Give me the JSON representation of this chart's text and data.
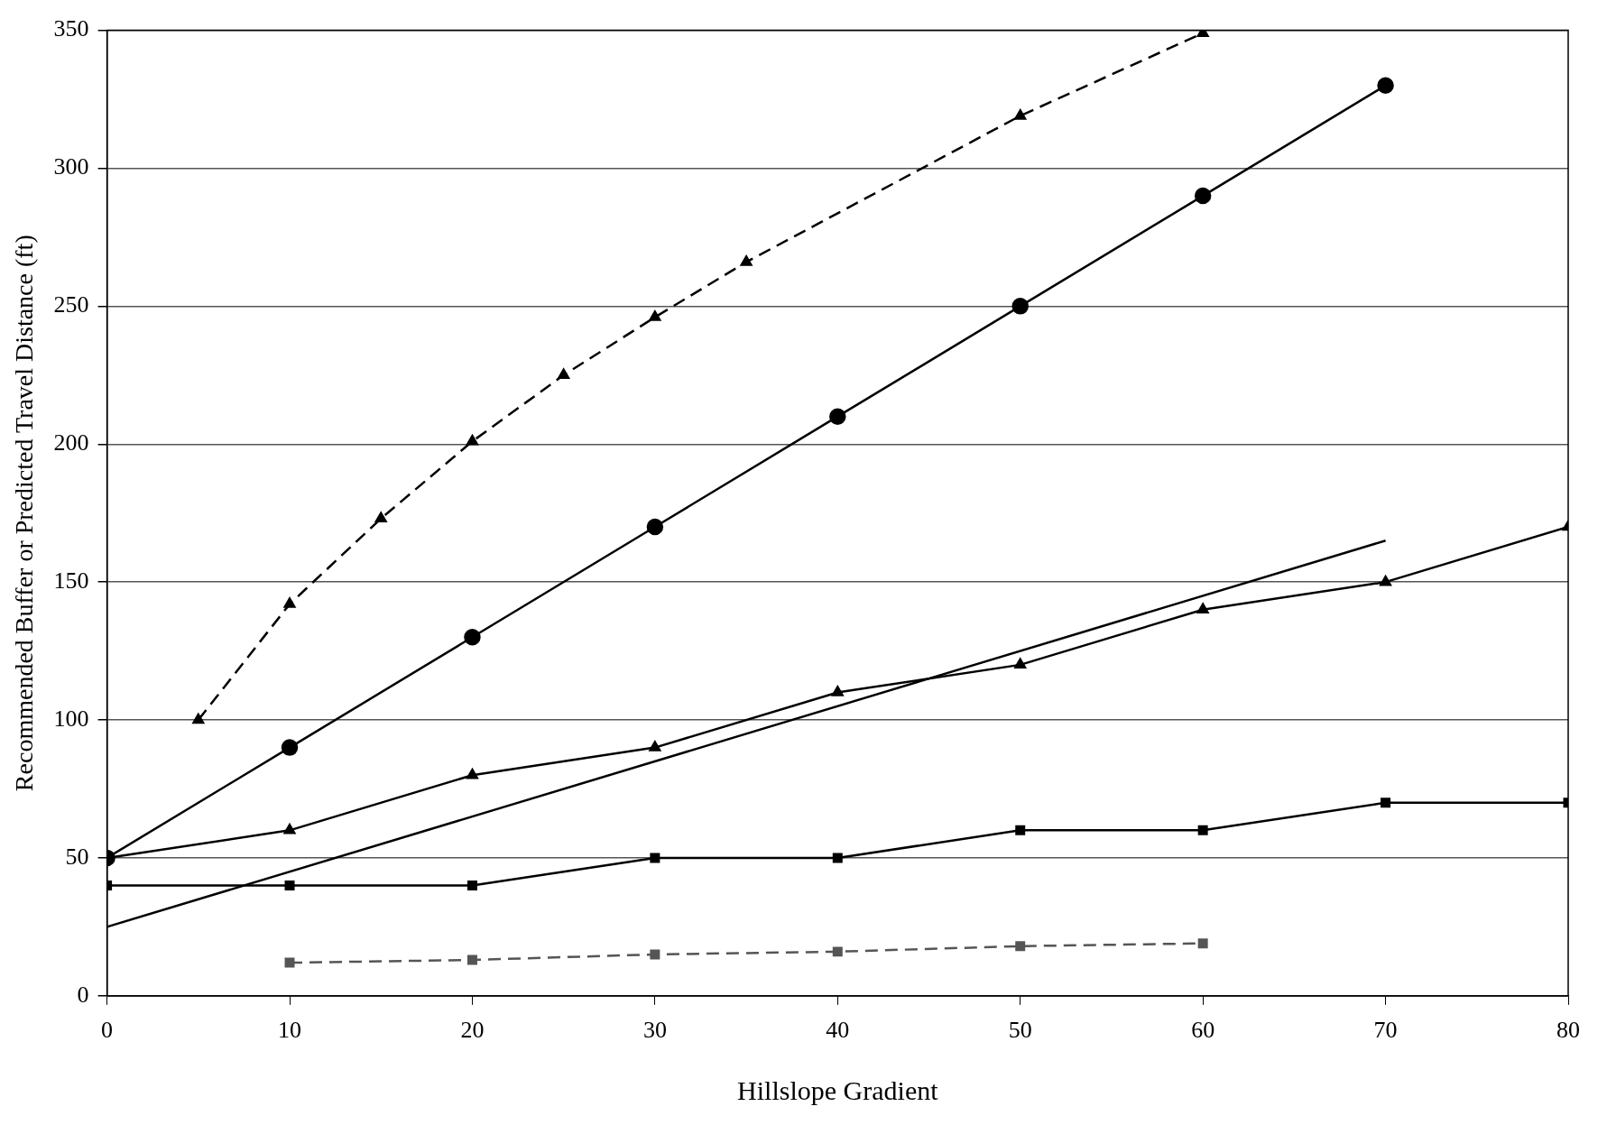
{
  "chart_data": {
    "type": "line",
    "xlabel": "Hillslope Gradient",
    "ylabel": "Recommended Buffer or Predicted Travel Distance (ft)",
    "xlim": [
      0,
      80
    ],
    "ylim": [
      0,
      350
    ],
    "xticks": [
      0,
      10,
      20,
      30,
      40,
      50,
      60,
      70,
      80
    ],
    "yticks": [
      0,
      50,
      100,
      150,
      200,
      250,
      300,
      350
    ],
    "grid": "y",
    "legend": false,
    "series": [
      {
        "color": "#000000",
        "marker": "triangle",
        "line_style": "dashed",
        "x": [
          5,
          10,
          15,
          20,
          25,
          30,
          35,
          50,
          60
        ],
        "values": [
          100,
          142,
          173,
          201,
          225,
          246,
          266,
          319,
          349
        ]
      },
      {
        "color": "#000000",
        "marker": "circle",
        "line_style": "solid",
        "x": [
          0,
          10,
          20,
          30,
          40,
          50,
          60,
          70
        ],
        "values": [
          50,
          90,
          130,
          170,
          210,
          250,
          290,
          330
        ]
      },
      {
        "color": "#000000",
        "marker": "none",
        "line_style": "solid",
        "x": [
          0,
          70
        ],
        "values": [
          25,
          165
        ]
      },
      {
        "color": "#000000",
        "marker": "triangle",
        "line_style": "solid",
        "x": [
          0,
          10,
          20,
          30,
          40,
          50,
          60,
          70,
          80
        ],
        "values": [
          50,
          60,
          80,
          90,
          110,
          120,
          140,
          150,
          170
        ]
      },
      {
        "color": "#000000",
        "marker": "square",
        "line_style": "solid",
        "x": [
          0,
          10,
          20,
          30,
          40,
          50,
          60,
          70,
          80
        ],
        "values": [
          40,
          40,
          40,
          50,
          50,
          60,
          60,
          70,
          70
        ]
      },
      {
        "color": "#555555",
        "marker": "square",
        "line_style": "dashed",
        "x": [
          10,
          20,
          30,
          40,
          50,
          60
        ],
        "values": [
          12,
          13,
          15,
          16,
          18,
          19
        ]
      }
    ]
  }
}
